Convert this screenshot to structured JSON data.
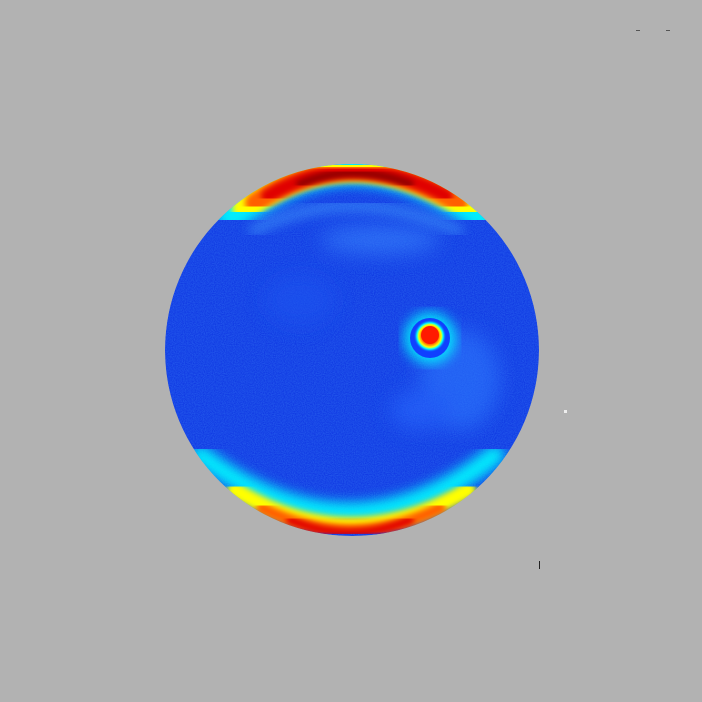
{
  "image": {
    "background_color": "#b2b2b2",
    "colormap": [
      "#00007f",
      "#0000ff",
      "#0080ff",
      "#00ffff",
      "#80ff80",
      "#ffff00",
      "#ff8000",
      "#ff0000",
      "#800000"
    ],
    "disk_base_color": "#0a2fe0"
  }
}
